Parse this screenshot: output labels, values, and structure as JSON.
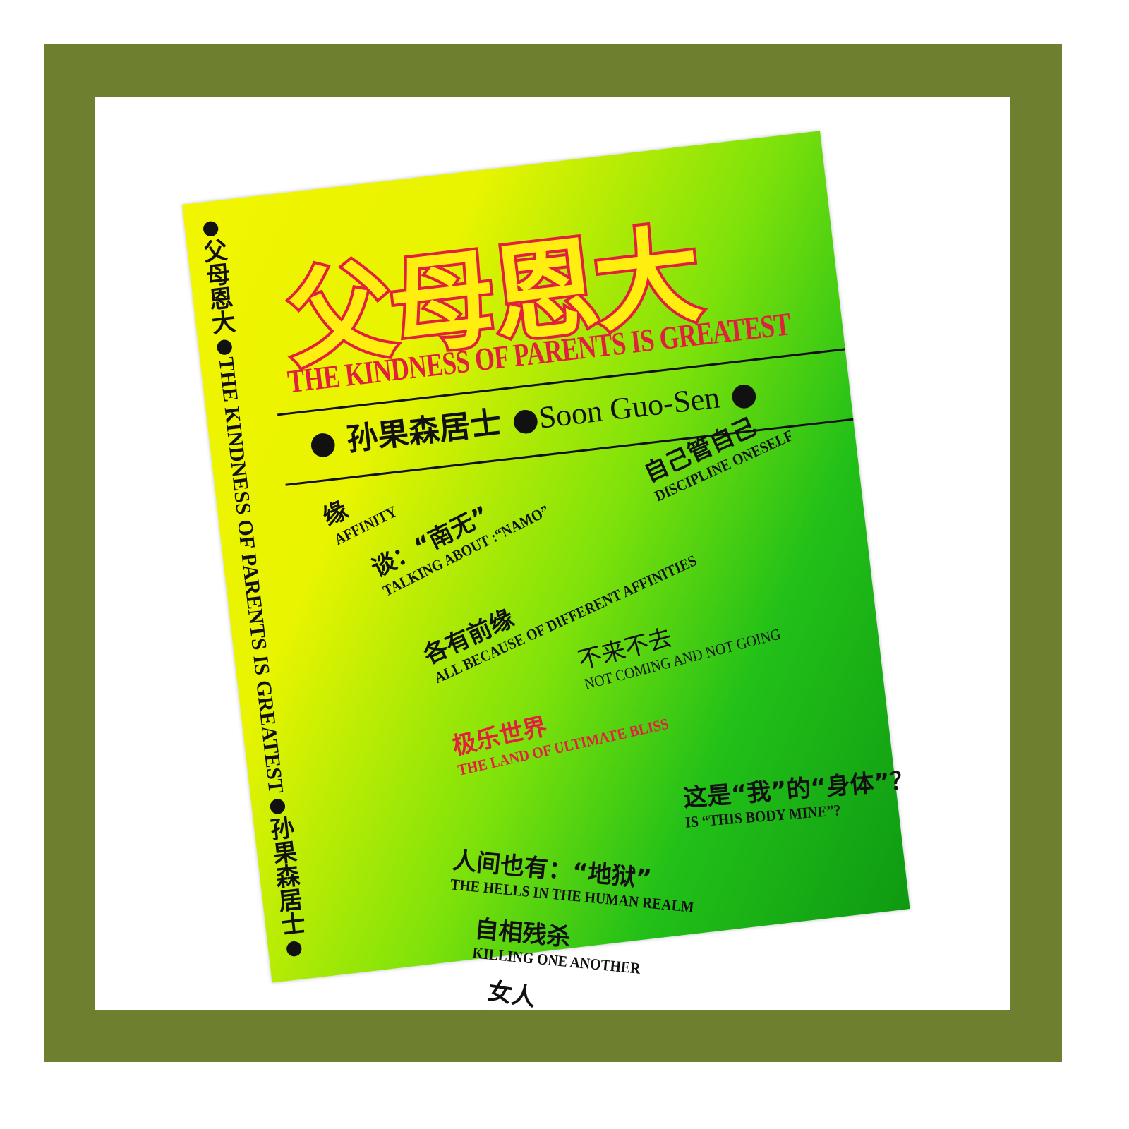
{
  "spine": {
    "title_cn": "父母恩大",
    "title_en": "THE KINDNESS OF PARENTS IS GREATEST",
    "author": "孙果森居士"
  },
  "cover": {
    "title_cn": "父母恩大",
    "title_en": "THE KINDNESS OF PARENTS IS GREATEST",
    "author_cn": "孙果森居士",
    "author_en": "Soon Guo-Sen"
  },
  "contents": [
    {
      "cn": "缘",
      "en": "AFFINITY"
    },
    {
      "cn": "谈：“南无”",
      "en": "TALKING ABOUT :“NAMO”"
    },
    {
      "cn": "自己管自己",
      "en": "DISCIPLINE ONESELF"
    },
    {
      "cn": "各有前缘",
      "en": "ALL BECAUSE OF DIFFERENT AFFINITIES"
    },
    {
      "cn": "不来不去",
      "en": "NOT COMING AND NOT GOING"
    },
    {
      "cn": "极乐世界",
      "en": "THE LAND OF ULTIMATE BLISS"
    },
    {
      "cn": "这是“我”的“身体”？",
      "en": "IS “THIS BODY MINE”?"
    },
    {
      "cn": "人间也有：“地狱”",
      "en": "THE HELLS IN THE HUMAN REALM"
    },
    {
      "cn": "自相残杀",
      "en": "KILLING ONE ANOTHER"
    },
    {
      "cn": "女人",
      "en": "WOMEN"
    }
  ]
}
